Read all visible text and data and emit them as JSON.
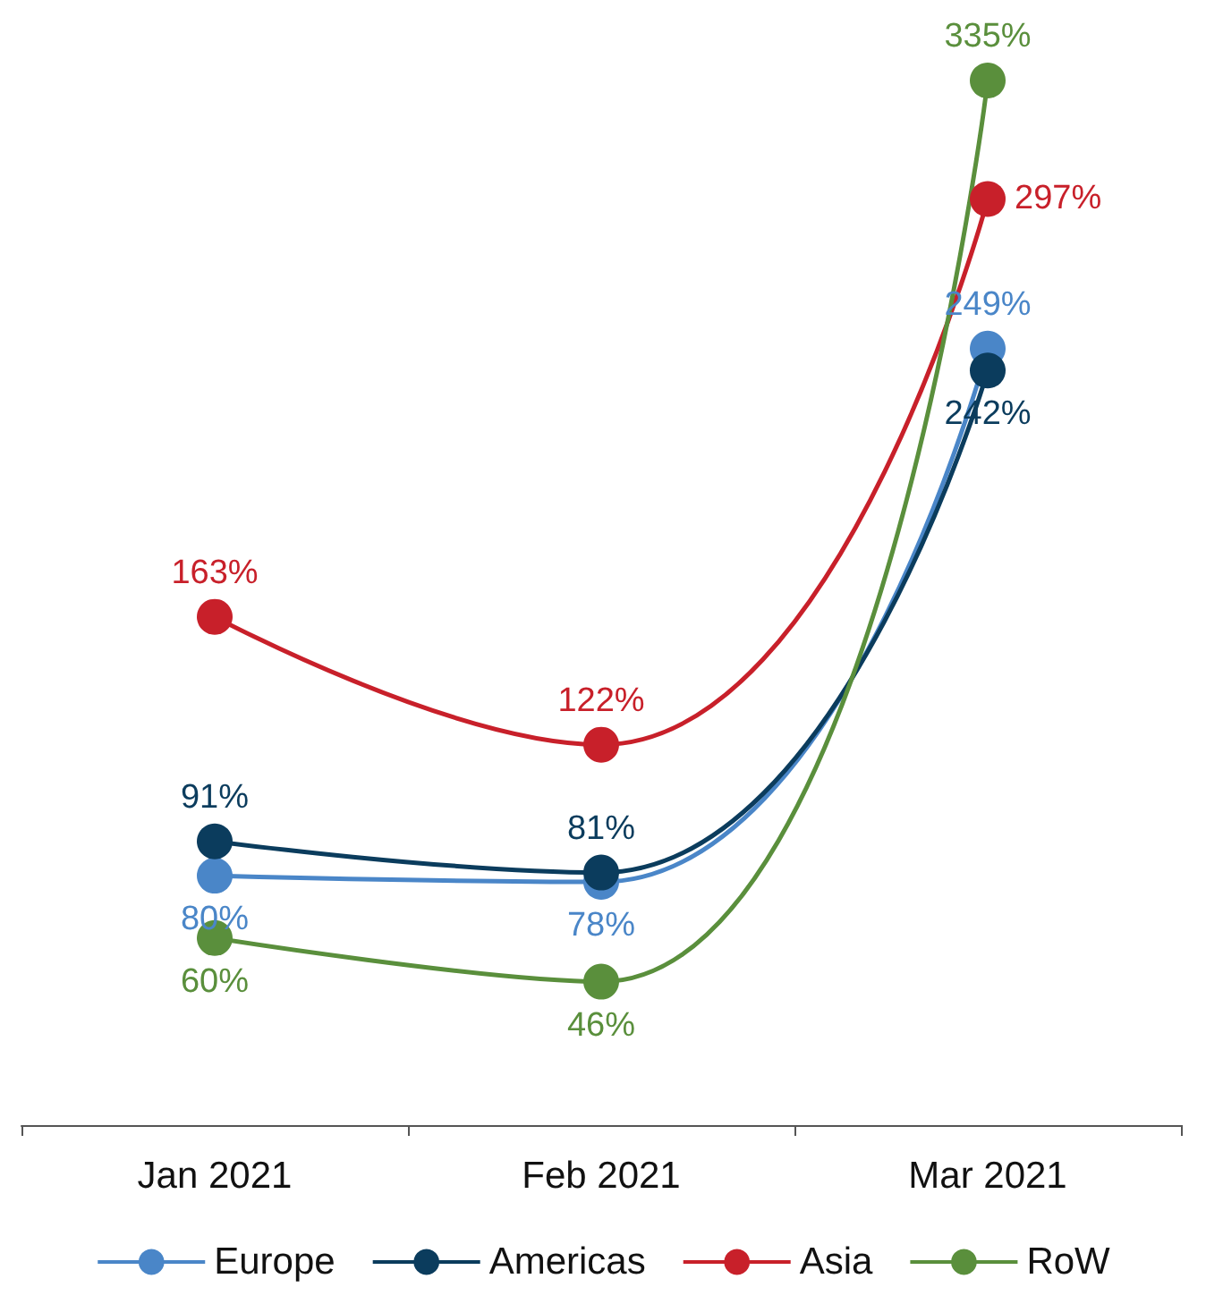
{
  "chart_data": {
    "type": "line",
    "categories": [
      "Jan 2021",
      "Feb 2021",
      "Mar 2021"
    ],
    "series": [
      {
        "name": "Europe",
        "color": "#4a86c8",
        "values": [
          80,
          78,
          249
        ],
        "value_labels": [
          "80%",
          "78%",
          "249%"
        ]
      },
      {
        "name": "Americas",
        "color": "#0b3c5d",
        "values": [
          91,
          81,
          242
        ],
        "value_labels": [
          "91%",
          "81%",
          "242%"
        ]
      },
      {
        "name": "Asia",
        "color": "#c8202a",
        "values": [
          163,
          122,
          297
        ],
        "value_labels": [
          "163%",
          "122%",
          "297%"
        ]
      },
      {
        "name": "RoW",
        "color": "#5a8f3c",
        "values": [
          60,
          46,
          335
        ],
        "value_labels": [
          "60%",
          "46%",
          "335%"
        ]
      }
    ],
    "legend": "bottom",
    "marker": "circle",
    "line_style": "solid",
    "grid": false
  }
}
